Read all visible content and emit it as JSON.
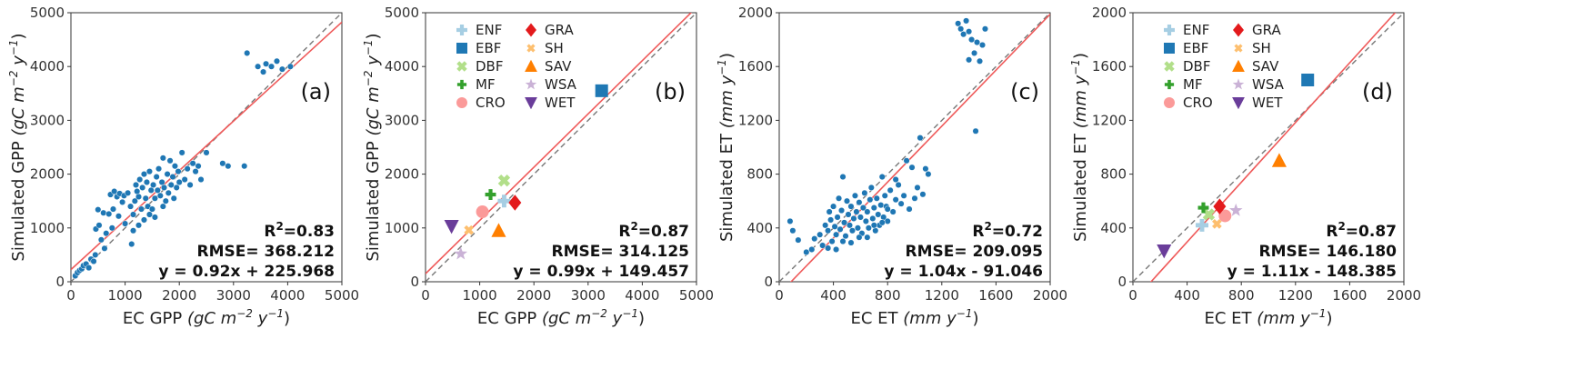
{
  "chart_data": [
    {
      "type": "scatter",
      "panel_label": "(a)",
      "xlabel": {
        "base": "EC GPP ",
        "unit_prefix": "gC m",
        "exp": "−2",
        "unit_mid": " y",
        "exp2": "−1"
      },
      "ylabel": {
        "base": "Simulated GPP ",
        "unit_prefix": "gC m",
        "exp": "−2",
        "unit_mid": " y",
        "exp2": "−1"
      },
      "xlim": [
        0,
        5000
      ],
      "ylim": [
        0,
        5000
      ],
      "xticks": [
        "0",
        "1000",
        "2000",
        "3000",
        "4000",
        "5000"
      ],
      "yticks": [
        "0",
        "1000",
        "2000",
        "3000",
        "4000",
        "5000"
      ],
      "stats": {
        "r2_label": "R",
        "r2_sup": "2",
        "r2_value": "=0.83",
        "rmse": "RMSE= 368.212",
        "eq": "y = 0.92x + 225.968"
      },
      "fit": {
        "slope": 0.92,
        "intercept": 225.968
      },
      "marker_color": "#1f77b4",
      "points": [
        [
          80,
          110
        ],
        [
          120,
          170
        ],
        [
          160,
          210
        ],
        [
          200,
          240
        ],
        [
          230,
          300
        ],
        [
          280,
          330
        ],
        [
          330,
          260
        ],
        [
          370,
          420
        ],
        [
          420,
          380
        ],
        [
          450,
          500
        ],
        [
          460,
          980
        ],
        [
          500,
          1340
        ],
        [
          520,
          1050
        ],
        [
          560,
          780
        ],
        [
          600,
          1280
        ],
        [
          620,
          620
        ],
        [
          650,
          900
        ],
        [
          700,
          1260
        ],
        [
          730,
          1620
        ],
        [
          760,
          1000
        ],
        [
          780,
          1350
        ],
        [
          800,
          1680
        ],
        [
          850,
          1580
        ],
        [
          880,
          1220
        ],
        [
          900,
          1640
        ],
        [
          950,
          1480
        ],
        [
          980,
          1600
        ],
        [
          1000,
          1080
        ],
        [
          1050,
          1650
        ],
        [
          1100,
          1400
        ],
        [
          1120,
          700
        ],
        [
          1150,
          1250
        ],
        [
          1180,
          1500
        ],
        [
          1200,
          1800
        ],
        [
          1220,
          1680
        ],
        [
          1250,
          1580
        ],
        [
          1270,
          1900
        ],
        [
          1300,
          1350
        ],
        [
          1320,
          1750
        ],
        [
          1350,
          2000
        ],
        [
          1380,
          1550
        ],
        [
          1400,
          1850
        ],
        [
          1420,
          1400
        ],
        [
          1450,
          2050
        ],
        [
          1480,
          1700
        ],
        [
          1500,
          1350
        ],
        [
          1520,
          1800
        ],
        [
          1550,
          1550
        ],
        [
          1580,
          1950
        ],
        [
          1600,
          1700
        ],
        [
          1620,
          2100
        ],
        [
          1650,
          1600
        ],
        [
          1680,
          1850
        ],
        [
          1700,
          2300
        ],
        [
          1720,
          1750
        ],
        [
          1750,
          1500
        ],
        [
          1780,
          2000
        ],
        [
          1800,
          1650
        ],
        [
          1830,
          2250
        ],
        [
          1850,
          1800
        ],
        [
          1880,
          1950
        ],
        [
          1900,
          1550
        ],
        [
          1920,
          2150
        ],
        [
          1950,
          1750
        ],
        [
          1980,
          2050
        ],
        [
          2000,
          1850
        ],
        [
          2050,
          2400
        ],
        [
          2100,
          1900
        ],
        [
          2150,
          2100
        ],
        [
          2200,
          1800
        ],
        [
          2250,
          2200
        ],
        [
          2300,
          2050
        ],
        [
          2350,
          2150
        ],
        [
          2400,
          1900
        ],
        [
          2500,
          2400
        ],
        [
          2800,
          2200
        ],
        [
          2900,
          2150
        ],
        [
          3200,
          2150
        ],
        [
          3250,
          4250
        ],
        [
          3450,
          4000
        ],
        [
          3550,
          3900
        ],
        [
          3600,
          4050
        ],
        [
          3700,
          4000
        ],
        [
          3800,
          4100
        ],
        [
          3900,
          3950
        ],
        [
          4050,
          4000
        ],
        [
          1250,
          1050
        ],
        [
          1350,
          1150
        ],
        [
          1550,
          1200
        ],
        [
          1150,
          950
        ],
        [
          1700,
          1400
        ],
        [
          1450,
          1250
        ]
      ]
    },
    {
      "type": "scatter",
      "panel_label": "(b)",
      "xlabel": {
        "base": "EC GPP ",
        "unit_prefix": "gC m",
        "exp": "−2",
        "unit_mid": " y",
        "exp2": "−1"
      },
      "ylabel": {
        "base": "Simulated GPP ",
        "unit_prefix": "gC m",
        "exp": "−2",
        "unit_mid": " y",
        "exp2": "−1"
      },
      "xlim": [
        0,
        5000
      ],
      "ylim": [
        0,
        5000
      ],
      "xticks": [
        "0",
        "1000",
        "2000",
        "3000",
        "4000",
        "5000"
      ],
      "yticks": [
        "0",
        "1000",
        "2000",
        "3000",
        "4000",
        "5000"
      ],
      "stats": {
        "r2_label": "R",
        "r2_sup": "2",
        "r2_value": "=0.87",
        "rmse": "RMSE= 314.125",
        "eq": "y = 0.99x + 149.457"
      },
      "fit": {
        "slope": 0.99,
        "intercept": 149.457
      },
      "legend": [
        {
          "name": "ENF",
          "marker": "plus",
          "color": "#a6cee3"
        },
        {
          "name": "GRA",
          "marker": "diamond",
          "color": "#e31a1c"
        },
        {
          "name": "EBF",
          "marker": "square",
          "color": "#1f78b4"
        },
        {
          "name": "SH",
          "marker": "xsmall",
          "color": "#fdbf6f"
        },
        {
          "name": "DBF",
          "marker": "x",
          "color": "#b2df8a"
        },
        {
          "name": "SAV",
          "marker": "triangle",
          "color": "#ff7f00"
        },
        {
          "name": "MF",
          "marker": "plussmall",
          "color": "#33a02c"
        },
        {
          "name": "WSA",
          "marker": "star",
          "color": "#cab2d6"
        },
        {
          "name": "CRO",
          "marker": "circle",
          "color": "#fb9a99"
        },
        {
          "name": "WET",
          "marker": "tridown",
          "color": "#6a3d9a"
        }
      ],
      "points": [
        {
          "cls": "ENF",
          "x": 1450,
          "y": 1500
        },
        {
          "cls": "EBF",
          "x": 3250,
          "y": 3550
        },
        {
          "cls": "DBF",
          "x": 1450,
          "y": 1880
        },
        {
          "cls": "MF",
          "x": 1200,
          "y": 1620
        },
        {
          "cls": "CRO",
          "x": 1050,
          "y": 1300
        },
        {
          "cls": "GRA",
          "x": 1650,
          "y": 1470
        },
        {
          "cls": "SH",
          "x": 800,
          "y": 960
        },
        {
          "cls": "SAV",
          "x": 1350,
          "y": 950
        },
        {
          "cls": "WSA",
          "x": 650,
          "y": 520
        },
        {
          "cls": "WET",
          "x": 480,
          "y": 1030
        }
      ]
    },
    {
      "type": "scatter",
      "panel_label": "(c)",
      "xlabel": {
        "base": "EC ET ",
        "unit_prefix": "mm y",
        "exp": "−1"
      },
      "ylabel": {
        "base": "Simulated ET ",
        "unit_prefix": "mm y",
        "exp": "−1"
      },
      "xlim": [
        0,
        2000
      ],
      "ylim": [
        0,
        2000
      ],
      "xticks": [
        "0",
        "400",
        "800",
        "1200",
        "1600",
        "2000"
      ],
      "yticks": [
        "0",
        "400",
        "800",
        "1200",
        "1600",
        "2000"
      ],
      "stats": {
        "r2_label": "R",
        "r2_sup": "2",
        "r2_value": "=0.72",
        "rmse": "RMSE= 209.095",
        "eq": "y = 1.04x - 91.046"
      },
      "fit": {
        "slope": 1.04,
        "intercept": -91.046
      },
      "marker_color": "#1f77b4",
      "points": [
        [
          80,
          450
        ],
        [
          100,
          380
        ],
        [
          140,
          310
        ],
        [
          200,
          220
        ],
        [
          240,
          240
        ],
        [
          260,
          320
        ],
        [
          300,
          350
        ],
        [
          320,
          270
        ],
        [
          340,
          420
        ],
        [
          360,
          380
        ],
        [
          370,
          520
        ],
        [
          380,
          460
        ],
        [
          390,
          300
        ],
        [
          400,
          560
        ],
        [
          410,
          410
        ],
        [
          420,
          350
        ],
        [
          430,
          480
        ],
        [
          440,
          620
        ],
        [
          450,
          390
        ],
        [
          460,
          530
        ],
        [
          470,
          780
        ],
        [
          480,
          440
        ],
        [
          490,
          340
        ],
        [
          500,
          600
        ],
        [
          510,
          500
        ],
        [
          520,
          420
        ],
        [
          530,
          560
        ],
        [
          540,
          380
        ],
        [
          550,
          470
        ],
        [
          560,
          640
        ],
        [
          570,
          520
        ],
        [
          580,
          400
        ],
        [
          590,
          590
        ],
        [
          600,
          480
        ],
        [
          610,
          360
        ],
        [
          620,
          550
        ],
        [
          630,
          660
        ],
        [
          640,
          450
        ],
        [
          650,
          520
        ],
        [
          660,
          400
        ],
        [
          670,
          610
        ],
        [
          680,
          700
        ],
        [
          690,
          470
        ],
        [
          700,
          550
        ],
        [
          710,
          380
        ],
        [
          720,
          620
        ],
        [
          730,
          500
        ],
        [
          740,
          420
        ],
        [
          750,
          570
        ],
        [
          760,
          780
        ],
        [
          770,
          480
        ],
        [
          780,
          640
        ],
        [
          790,
          560
        ],
        [
          800,
          450
        ],
        [
          820,
          680
        ],
        [
          840,
          520
        ],
        [
          860,
          610
        ],
        [
          880,
          720
        ],
        [
          900,
          580
        ],
        [
          920,
          640
        ],
        [
          940,
          900
        ],
        [
          960,
          540
        ],
        [
          980,
          850
        ],
        [
          1000,
          620
        ],
        [
          1020,
          700
        ],
        [
          1040,
          1070
        ],
        [
          1060,
          650
        ],
        [
          1080,
          840
        ],
        [
          1100,
          800
        ],
        [
          1320,
          1920
        ],
        [
          1340,
          1880
        ],
        [
          1360,
          1840
        ],
        [
          1380,
          1940
        ],
        [
          1400,
          1860
        ],
        [
          1420,
          1800
        ],
        [
          1440,
          1700
        ],
        [
          1460,
          1780
        ],
        [
          1480,
          1640
        ],
        [
          1500,
          1760
        ],
        [
          1520,
          1880
        ],
        [
          1450,
          1120
        ],
        [
          1400,
          1650
        ],
        [
          360,
          250
        ],
        [
          420,
          240
        ],
        [
          470,
          300
        ],
        [
          530,
          290
        ],
        [
          590,
          330
        ],
        [
          650,
          330
        ],
        [
          700,
          420
        ],
        [
          760,
          440
        ],
        [
          800,
          540
        ],
        [
          860,
          760
        ]
      ]
    },
    {
      "type": "scatter",
      "panel_label": "(d)",
      "xlabel": {
        "base": "EC ET ",
        "unit_prefix": "mm y",
        "exp": "−1"
      },
      "ylabel": {
        "base": "Simulated ET ",
        "unit_prefix": "mm y",
        "exp": "−1"
      },
      "xlim": [
        0,
        2000
      ],
      "ylim": [
        0,
        2000
      ],
      "xticks": [
        "0",
        "400",
        "800",
        "1200",
        "1600",
        "2000"
      ],
      "yticks": [
        "0",
        "400",
        "800",
        "1200",
        "1600",
        "2000"
      ],
      "stats": {
        "r2_label": "R",
        "r2_sup": "2",
        "r2_value": "=0.87",
        "rmse": "RMSE= 146.180",
        "eq": "y = 1.11x - 148.385"
      },
      "fit": {
        "slope": 1.11,
        "intercept": -148.385
      },
      "legend": [
        {
          "name": "ENF",
          "marker": "plus",
          "color": "#a6cee3"
        },
        {
          "name": "GRA",
          "marker": "diamond",
          "color": "#e31a1c"
        },
        {
          "name": "EBF",
          "marker": "square",
          "color": "#1f78b4"
        },
        {
          "name": "SH",
          "marker": "xsmall",
          "color": "#fdbf6f"
        },
        {
          "name": "DBF",
          "marker": "x",
          "color": "#b2df8a"
        },
        {
          "name": "SAV",
          "marker": "triangle",
          "color": "#ff7f00"
        },
        {
          "name": "MF",
          "marker": "plussmall",
          "color": "#33a02c"
        },
        {
          "name": "WSA",
          "marker": "star",
          "color": "#cab2d6"
        },
        {
          "name": "CRO",
          "marker": "circle",
          "color": "#fb9a99"
        },
        {
          "name": "WET",
          "marker": "tridown",
          "color": "#6a3d9a"
        }
      ],
      "points": [
        {
          "cls": "ENF",
          "x": 510,
          "y": 420
        },
        {
          "cls": "EBF",
          "x": 1290,
          "y": 1500
        },
        {
          "cls": "DBF",
          "x": 560,
          "y": 500
        },
        {
          "cls": "MF",
          "x": 520,
          "y": 550
        },
        {
          "cls": "CRO",
          "x": 680,
          "y": 490
        },
        {
          "cls": "GRA",
          "x": 640,
          "y": 560
        },
        {
          "cls": "SH",
          "x": 620,
          "y": 430
        },
        {
          "cls": "SAV",
          "x": 1080,
          "y": 900
        },
        {
          "cls": "WSA",
          "x": 760,
          "y": 530
        },
        {
          "cls": "WET",
          "x": 230,
          "y": 230
        }
      ]
    }
  ]
}
